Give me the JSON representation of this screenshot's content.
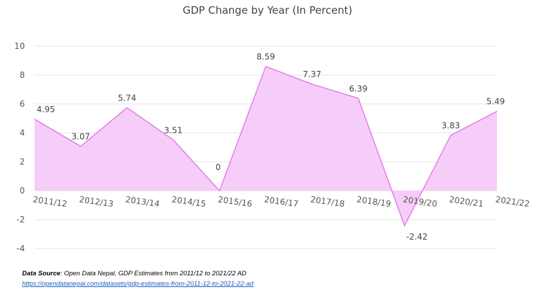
{
  "chart_data": {
    "type": "area",
    "title": "GDP Change by Year (In Percent)",
    "xlabel": "",
    "ylabel": "",
    "categories": [
      "2011/12",
      "2012/13",
      "2013/14",
      "2014/15",
      "2015/16",
      "2016/17",
      "2017/18",
      "2018/19",
      "2019/20",
      "2020/21",
      "2021/22"
    ],
    "values": [
      4.95,
      3.07,
      5.74,
      3.51,
      0,
      8.59,
      7.37,
      6.39,
      -2.42,
      3.83,
      5.49
    ],
    "data_labels": [
      "4.95",
      "3.07",
      "5.74",
      "3.51",
      "0",
      "8.59",
      "7.37",
      "6.39",
      "-2.42",
      "3.83",
      "5.49"
    ],
    "ylim": [
      -4,
      10
    ],
    "yticks": [
      -4,
      -2,
      0,
      2,
      4,
      6,
      8,
      10
    ],
    "grid": "horizontal",
    "legend": "none",
    "fill_color": "#f5c8f7",
    "line_color": "#e07ee9"
  },
  "source": {
    "label": "Data Source",
    "text": ": Open Data Nepal,  GDP Estimates from 2011/12 to 2021/22 AD",
    "link": "https://opendatanepal.com/datasets/gdp-estimates-from-2011-12-to-2021-22-ad"
  }
}
